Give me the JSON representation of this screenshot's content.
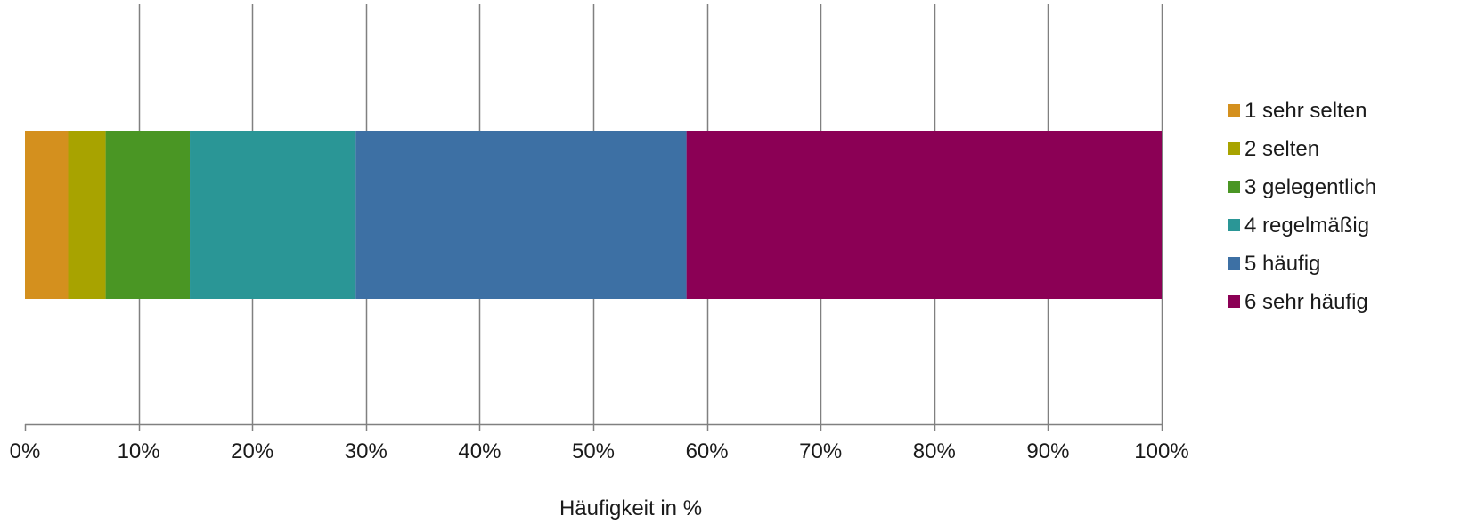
{
  "chart_data": {
    "type": "bar",
    "orientation": "horizontal",
    "stacked": true,
    "percent_stacked": true,
    "categories": [
      ""
    ],
    "series": [
      {
        "name": "1 sehr selten",
        "values": [
          3.8
        ],
        "color": "#D4901E"
      },
      {
        "name": "2 selten",
        "values": [
          3.3
        ],
        "color": "#A8A300"
      },
      {
        "name": "3 gelegentlich",
        "values": [
          7.4
        ],
        "color": "#4A9624"
      },
      {
        "name": "4 regelmäßig",
        "values": [
          14.6
        ],
        "color": "#2A9696"
      },
      {
        "name": "5 häufig",
        "values": [
          29.1
        ],
        "color": "#3D70A4"
      },
      {
        "name": "6 sehr häufig",
        "values": [
          41.8
        ],
        "color": "#8B0055"
      }
    ],
    "xlabel": "Häufigkeit in %",
    "xlim": [
      0,
      100
    ],
    "x_ticks": [
      "0%",
      "10%",
      "20%",
      "30%",
      "40%",
      "50%",
      "60%",
      "70%",
      "80%",
      "90%",
      "100%"
    ],
    "grid": "vertical",
    "legend_position": "right",
    "colors": {
      "gridline": "#808080",
      "axis": "#808080"
    }
  }
}
